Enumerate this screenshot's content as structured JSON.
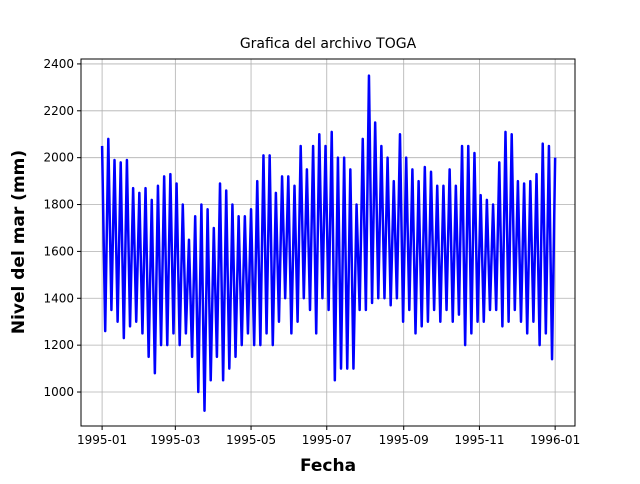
{
  "chart_data": {
    "type": "line",
    "title": "Grafica del archivo TOGA",
    "x_label": "Fecha",
    "y_label": "Nivel del mar (mm)",
    "series": [
      {
        "color": "#0000ff",
        "x": [
          0,
          2.5,
          5,
          7.5,
          10,
          12.5,
          15,
          17.5,
          20,
          22.5,
          25,
          27.5,
          30,
          32.5,
          35,
          37.5,
          40,
          42.5,
          45,
          47.5,
          50,
          52.5,
          55,
          57.5,
          60,
          62.5,
          65,
          67.5,
          70,
          72.5,
          75,
          77.5,
          80,
          82.5,
          85,
          87.5,
          90,
          92.5,
          95,
          97.5,
          100,
          102.5,
          105,
          107.5,
          110,
          112.5,
          115,
          117.5,
          120,
          122.5,
          125,
          127.5,
          130,
          132.5,
          135,
          137.5,
          140,
          142.5,
          145,
          147.5,
          150,
          152.5,
          155,
          157.5,
          160,
          162.5,
          165,
          167.5,
          170,
          172.5,
          175,
          177.5,
          180,
          182.5,
          185,
          187.5,
          190,
          192.5,
          195,
          197.5,
          200,
          202.5,
          205,
          207.5,
          210,
          212.5,
          215,
          217.5,
          220,
          222.5,
          225,
          227.5,
          230,
          232.5,
          235,
          237.5,
          240,
          242.5,
          245,
          247.5,
          250,
          252.5,
          255,
          257.5,
          260,
          262.5,
          265,
          267.5,
          270,
          272.5,
          275,
          277.5,
          280,
          282.5,
          285,
          287.5,
          290,
          292.5,
          295,
          297.5,
          300,
          302.5,
          305,
          307.5,
          310,
          312.5,
          315,
          317.5,
          320,
          322.5,
          325,
          327.5,
          330,
          332.5,
          335,
          337.5,
          340,
          342.5,
          345,
          347.5,
          350,
          352.5,
          355,
          357.5,
          360,
          362.5,
          365
        ],
        "values": [
          2050,
          1260,
          2080,
          1350,
          1990,
          1300,
          1980,
          1230,
          1990,
          1280,
          1870,
          1300,
          1850,
          1250,
          1870,
          1150,
          1820,
          1080,
          1880,
          1200,
          1920,
          1200,
          1930,
          1250,
          1890,
          1200,
          1800,
          1250,
          1650,
          1150,
          1750,
          1000,
          1800,
          920,
          1780,
          1050,
          1700,
          1150,
          1890,
          1050,
          1860,
          1100,
          1800,
          1150,
          1750,
          1200,
          1750,
          1250,
          1780,
          1200,
          1900,
          1200,
          2010,
          1250,
          2010,
          1200,
          1850,
          1300,
          1920,
          1400,
          1920,
          1250,
          1880,
          1300,
          2050,
          1400,
          1950,
          1350,
          2050,
          1250,
          2100,
          1400,
          2050,
          1350,
          2110,
          1050,
          2000,
          1100,
          2000,
          1100,
          1950,
          1100,
          1800,
          1350,
          2080,
          1350,
          2350,
          1380,
          2150,
          1400,
          2050,
          1400,
          2000,
          1370,
          1900,
          1400,
          2100,
          1300,
          2000,
          1350,
          1950,
          1250,
          1900,
          1280,
          1960,
          1300,
          1940,
          1350,
          1880,
          1300,
          1880,
          1350,
          1950,
          1300,
          1880,
          1330,
          2050,
          1200,
          2050,
          1250,
          2020,
          1300,
          1840,
          1300,
          1820,
          1350,
          1800,
          1350,
          1980,
          1280,
          2110,
          1300,
          2100,
          1350,
          1900,
          1300,
          1890,
          1250,
          1900,
          1300,
          1930,
          1200,
          2060,
          1250,
          2050,
          1140,
          2000
        ]
      }
    ],
    "xlim": [
      -17,
      381
    ],
    "ylim": [
      855,
      2421
    ],
    "xticks": [
      {
        "value": 0,
        "label": "1995-01"
      },
      {
        "value": 59,
        "label": "1995-03"
      },
      {
        "value": 120,
        "label": "1995-05"
      },
      {
        "value": 181,
        "label": "1995-07"
      },
      {
        "value": 243,
        "label": "1995-09"
      },
      {
        "value": 304,
        "label": "1995-11"
      },
      {
        "value": 365,
        "label": "1996-01"
      }
    ],
    "yticks": [
      1000,
      1200,
      1400,
      1600,
      1800,
      2000,
      2200,
      2400
    ],
    "grid": true
  }
}
